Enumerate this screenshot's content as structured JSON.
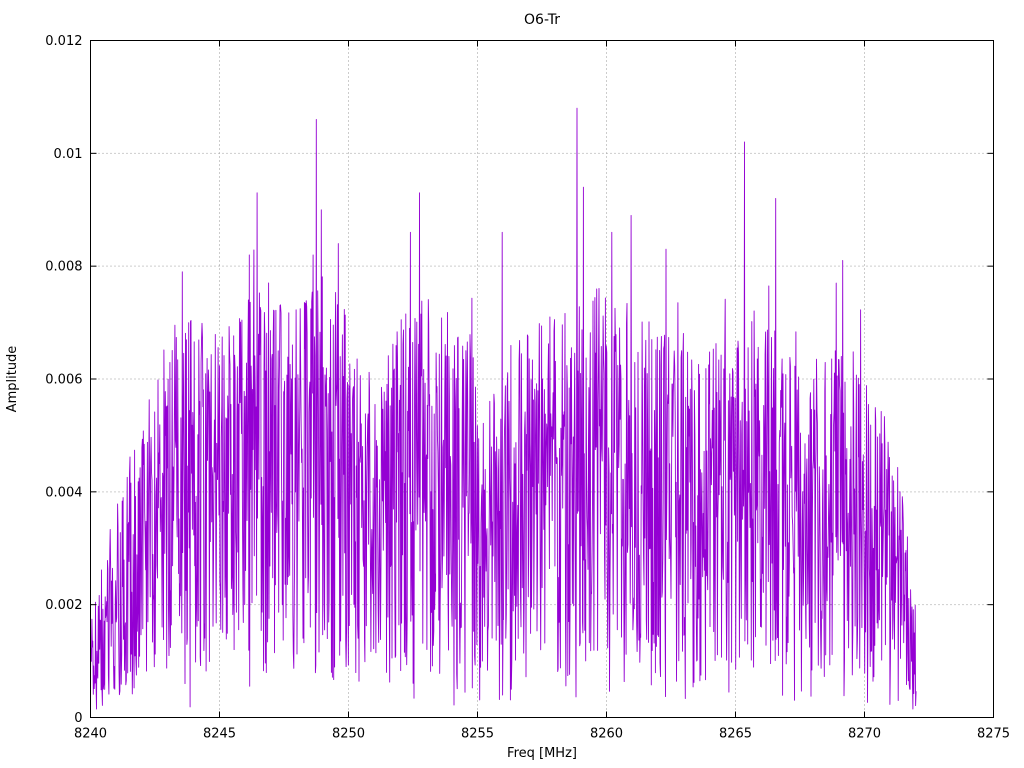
{
  "page": {
    "background": "#ffffff"
  },
  "chart_data": {
    "type": "line",
    "title": "O6-Tr",
    "xlabel": "Freq [MHz]",
    "ylabel": "Amplitude",
    "xlim": [
      8240,
      8275
    ],
    "ylim": [
      0,
      0.012
    ],
    "x_ticks": [
      8240,
      8245,
      8250,
      8255,
      8260,
      8265,
      8270,
      8275
    ],
    "x_tick_labels": [
      "8240",
      "8245",
      "8250",
      "8255",
      "8260",
      "8265",
      "8270",
      "8275"
    ],
    "y_ticks": [
      0,
      0.002,
      0.004,
      0.006,
      0.008,
      0.01,
      0.012
    ],
    "y_tick_labels": [
      "0",
      "0.002",
      "0.004",
      "0.006",
      "0.008",
      "0.01",
      "0.012"
    ],
    "grid": {
      "style": "dotted",
      "color": "#9a9a9a"
    },
    "legend": "none",
    "series": [
      {
        "name": "O6-Tr",
        "color": "#9400D3",
        "x_start": 8240.0,
        "x_end": 8272.0,
        "n_points": 1800,
        "seed": 20240615,
        "noise": {
          "floor_frac": 0.1,
          "span_frac": 0.92,
          "shape": 0.8,
          "dip_prob": 0.08,
          "dip_factor": 0.25
        },
        "envelope": [
          [
            8240.0,
            0.002
          ],
          [
            8240.5,
            0.003
          ],
          [
            8241.5,
            0.0045
          ],
          [
            8242.5,
            0.006
          ],
          [
            8243.5,
            0.0072
          ],
          [
            8245.0,
            0.0066
          ],
          [
            8246.5,
            0.0075
          ],
          [
            8248.0,
            0.0072
          ],
          [
            8249.0,
            0.0078
          ],
          [
            8250.0,
            0.007
          ],
          [
            8251.0,
            0.0058
          ],
          [
            8252.5,
            0.0075
          ],
          [
            8254.0,
            0.007
          ],
          [
            8255.5,
            0.0063
          ],
          [
            8257.0,
            0.0068
          ],
          [
            8258.5,
            0.0072
          ],
          [
            8259.5,
            0.0075
          ],
          [
            8261.0,
            0.0072
          ],
          [
            8262.5,
            0.0066
          ],
          [
            8264.0,
            0.0064
          ],
          [
            8265.5,
            0.0072
          ],
          [
            8267.0,
            0.0065
          ],
          [
            8268.5,
            0.0063
          ],
          [
            8269.5,
            0.0068
          ],
          [
            8270.5,
            0.0058
          ],
          [
            8271.3,
            0.0046
          ],
          [
            8272.0,
            0.002
          ]
        ],
        "notable_peaks": [
          [
            8243.55,
            0.0079
          ],
          [
            8246.15,
            0.0082
          ],
          [
            8246.45,
            0.0093
          ],
          [
            8248.75,
            0.0106
          ],
          [
            8248.95,
            0.009
          ],
          [
            8249.6,
            0.0084
          ],
          [
            8252.4,
            0.0086
          ],
          [
            8252.75,
            0.0093
          ],
          [
            8255.95,
            0.0086
          ],
          [
            8258.85,
            0.0108
          ],
          [
            8259.1,
            0.0094
          ],
          [
            8260.2,
            0.0086
          ],
          [
            8260.95,
            0.0089
          ],
          [
            8262.3,
            0.0083
          ],
          [
            8265.35,
            0.0102
          ],
          [
            8266.55,
            0.0092
          ],
          [
            8268.9,
            0.0077
          ],
          [
            8269.15,
            0.0081
          ]
        ]
      }
    ]
  }
}
